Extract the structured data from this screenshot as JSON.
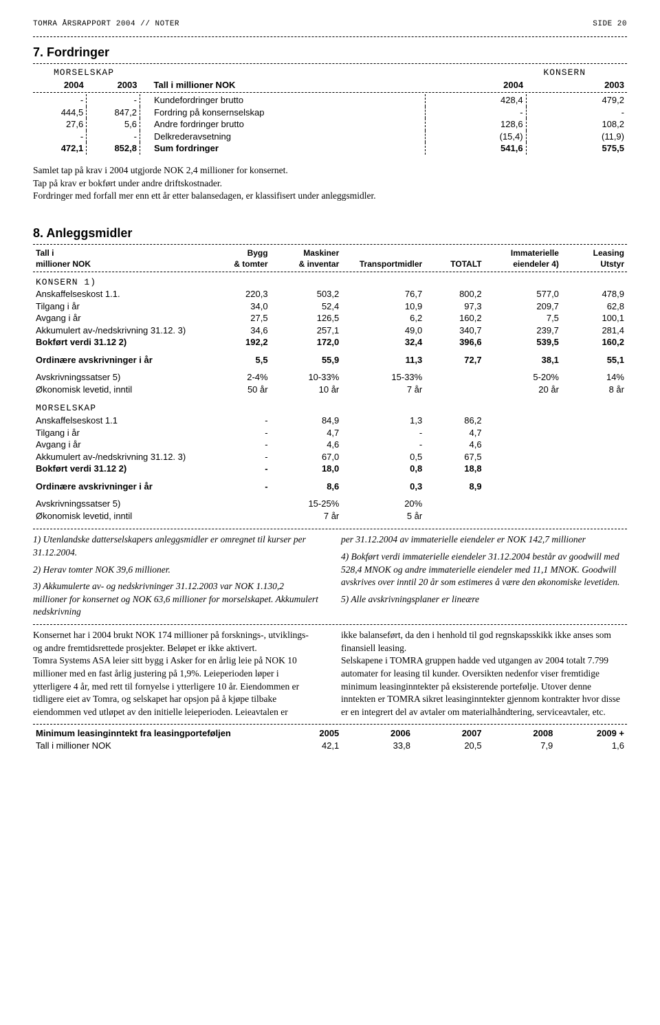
{
  "header": {
    "left": "TOMRA ÅRSRAPPORT 2004 // NOTER",
    "right": "SIDE 20"
  },
  "sec7": {
    "title": "7. Fordringer",
    "morselskap": "MORSELSKAP",
    "konsern": "KONSERN",
    "col": {
      "y04": "2004",
      "y03": "2003",
      "mid": "Tall i millioner NOK"
    },
    "rows": [
      {
        "m04": "-",
        "m03": "-",
        "label": "Kundefordringer brutto",
        "k04": "428,4",
        "k03": "479,2"
      },
      {
        "m04": "444,5",
        "m03": "847,2",
        "label": "Fordring på konsernselskap",
        "k04": "-",
        "k03": "-"
      },
      {
        "m04": "27,6",
        "m03": "5,6",
        "label": "Andre fordringer brutto",
        "k04": "128,6",
        "k03": "108,2"
      },
      {
        "m04": "-",
        "m03": "-",
        "label": "Delkrederavsetning",
        "k04": "(15,4)",
        "k03": "(11,9)"
      },
      {
        "m04": "472,1",
        "m03": "852,8",
        "label": "Sum fordringer",
        "k04": "541,6",
        "k03": "575,5",
        "bold": true
      }
    ],
    "para": [
      "Samlet tap på krav i 2004 utgjorde NOK 2,4 millioner for konsernet.",
      "Tap på krav er bokført under andre driftskostnader.",
      "Fordringer med forfall mer enn ett år etter balansedagen, er klassifisert under anleggsmidler."
    ]
  },
  "sec8": {
    "title": "8. Anleggsmidler",
    "head": {
      "left1": "Tall i",
      "left2": "millioner NOK",
      "c1a": "Bygg",
      "c1b": "& tomter",
      "c2a": "Maskiner",
      "c2b": "& inventar",
      "c3": "Transportmidler",
      "c4": "TOTALT",
      "c5a": "Immaterielle",
      "c5b": "eiendeler 4)",
      "c6a": "Leasing",
      "c6b": "Utstyr"
    },
    "konsern_label": "KONSERN 1)",
    "k_rows": [
      {
        "l": "Anskaffelseskost 1.1.",
        "v": [
          "220,3",
          "503,2",
          "76,7",
          "800,2",
          "577,0",
          "478,9"
        ]
      },
      {
        "l": "Tilgang i år",
        "v": [
          "34,0",
          "52,4",
          "10,9",
          "97,3",
          "209,7",
          "62,8"
        ]
      },
      {
        "l": "Avgang i år",
        "v": [
          "27,5",
          "126,5",
          "6,2",
          "160,2",
          "7,5",
          "100,1"
        ]
      },
      {
        "l": "Akkumulert av-/nedskrivning 31.12. 3)",
        "v": [
          "34,6",
          "257,1",
          "49,0",
          "340,7",
          "239,7",
          "281,4"
        ]
      },
      {
        "l": "Bokført verdi 31.12 2)",
        "v": [
          "192,2",
          "172,0",
          "32,4",
          "396,6",
          "539,5",
          "160,2"
        ],
        "bold": true
      }
    ],
    "k_ord": {
      "l": "Ordinære avskrivninger i år",
      "v": [
        "5,5",
        "55,9",
        "11,3",
        "72,7",
        "38,1",
        "55,1"
      ],
      "bold": true
    },
    "k_sats": {
      "l": "Avskrivningssatser 5)",
      "v": [
        "2-4%",
        "10-33%",
        "15-33%",
        "",
        "5-20%",
        "14%"
      ]
    },
    "k_lev": {
      "l": "Økonomisk levetid, inntil",
      "v": [
        "50 år",
        "10 år",
        "7 år",
        "",
        "20 år",
        "8 år"
      ]
    },
    "morselskap_label": "MORSELSKAP",
    "m_rows": [
      {
        "l": "Anskaffelseskost 1.1",
        "v": [
          "-",
          "84,9",
          "1,3",
          "86,2"
        ]
      },
      {
        "l": "Tilgang i år",
        "v": [
          "-",
          "4,7",
          "-",
          "4,7"
        ]
      },
      {
        "l": "Avgang i år",
        "v": [
          "-",
          "4,6",
          "-",
          "4,6"
        ]
      },
      {
        "l": "Akkumulert av-/nedskrivning 31.12. 3)",
        "v": [
          "-",
          "67,0",
          "0,5",
          "67,5"
        ]
      },
      {
        "l": "Bokført verdi 31.12 2)",
        "v": [
          "-",
          "18,0",
          "0,8",
          "18,8"
        ],
        "bold": true
      }
    ],
    "m_ord": {
      "l": "Ordinære avskrivninger i år",
      "v": [
        "-",
        "8,6",
        "0,3",
        "8,9"
      ],
      "bold": true
    },
    "m_sats": {
      "l": "Avskrivningssatser 5)",
      "v": [
        "",
        "15-25%",
        "20%",
        ""
      ]
    },
    "m_lev": {
      "l": "Økonomisk levetid, inntil",
      "v": [
        "",
        "7 år",
        "5 år",
        ""
      ]
    },
    "foot_left": [
      "1)  Utenlandske datterselskapers anleggsmidler er omregnet til kurser per 31.12.2004.",
      "2)  Herav tomter NOK 39,6 millioner.",
      "3)  Akkumulerte av- og nedskrivninger 31.12.2003 var NOK 1.130,2 millioner for konsernet og NOK 63,6 millioner for morselskapet. Akkumulert nedskrivning"
    ],
    "foot_right": [
      "per 31.12.2004 av immaterielle eiendeler er NOK 142,7 millioner",
      "4)  Bokført verdi immaterielle eiendeler 31.12.2004 består av goodwill med 528,4 MNOK og andre immaterielle eiendeler med 11,1 MNOK. Goodwill avskrives over inntil 20 år som estimeres å være den økonomiske levetiden.",
      "5)  Alle avskrivningsplaner er lineære"
    ],
    "body_left": "Konsernet har i 2004 brukt NOK 174 millioner på forsknings-, utviklings- og andre fremtidsrettede prosjekter. Beløpet er ikke aktivert.\nTomra Systems ASA leier sitt bygg i Asker for en årlig leie på NOK 10 millioner med en fast årlig justering på 1,9%. Leieperioden løper i ytterligere 4 år, med rett til fornyelse i ytterligere 10 år.  Eiendommen er tidligere eiet av Tomra, og selskapet har opsjon på å kjøpe tilbake eiendommen ved utløpet av den initielle leieperioden. Leieavtalen er",
    "body_right": "ikke balanseført, da den i henhold til god regnskapsskikk ikke anses som finansiell leasing.\nSelskapene i TOMRA gruppen hadde ved utgangen av 2004 totalt 7.799 automater for leasing til kunder. Oversikten nedenfor viser fremtidige minimum leasinginntekter på eksisterende portefølje. Utover denne inntekten er TOMRA sikret leasinginntekter gjennom kontrakter hvor disse er en integrert del av avtaler om materialhåndtering, serviceavtaler, etc.",
    "leasing": {
      "rowlabel1": "Minimum leasinginntekt fra leasingporteføljen",
      "rowlabel2": "Tall i millioner NOK",
      "years": [
        "2005",
        "2006",
        "2007",
        "2008",
        "2009 +"
      ],
      "values": [
        "42,1",
        "33,8",
        "20,5",
        "7,9",
        "1,6"
      ]
    }
  }
}
